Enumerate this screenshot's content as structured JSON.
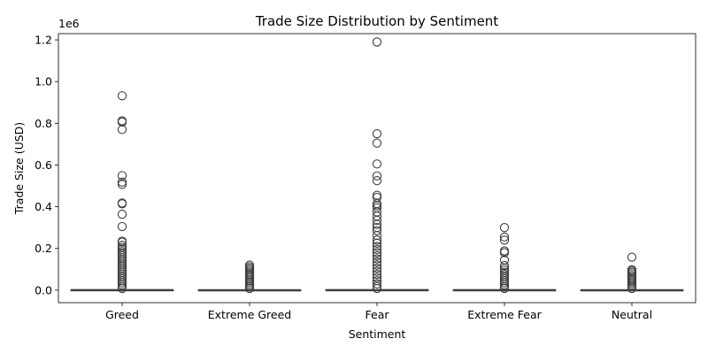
{
  "chart_data": {
    "type": "box",
    "title": "Trade Size Distribution by Sentiment",
    "xlabel": "Sentiment",
    "ylabel": "Trade Size (USD)",
    "y_offset_label": "1e6",
    "ylim": [
      -60000,
      1230000
    ],
    "yticks": [
      0,
      200000,
      400000,
      600000,
      800000,
      1000000,
      1200000
    ],
    "ytick_labels": [
      "0.0",
      "0.2",
      "0.4",
      "0.6",
      "0.8",
      "1.0",
      "1.2"
    ],
    "grid": false,
    "categories": [
      "Greed",
      "Extreme Greed",
      "Fear",
      "Extreme Fear",
      "Neutral"
    ],
    "boxes": [
      {
        "category": "Greed",
        "q1": 0,
        "median": 500,
        "q3": 2000,
        "whisker_low": 0,
        "whisker_high": 5000,
        "outliers": [
          932000,
          812000,
          806000,
          770000,
          549000,
          518000,
          507000,
          418000,
          414000,
          364000,
          305000,
          235000,
          230000,
          215000,
          205000,
          195000,
          185000,
          175000,
          165000,
          155000,
          145000,
          135000,
          125000,
          115000,
          105000,
          95000,
          85000,
          75000,
          65000,
          55000,
          45000,
          35000,
          25000,
          15000,
          8000
        ]
      },
      {
        "category": "Extreme Greed",
        "q1": 0,
        "median": 300,
        "q3": 1500,
        "whisker_low": 0,
        "whisker_high": 4000,
        "outliers": [
          120000,
          112000,
          105000,
          98000,
          90000,
          82000,
          75000,
          68000,
          60000,
          52000,
          45000,
          38000,
          30000,
          22000,
          15000,
          8000
        ]
      },
      {
        "category": "Fear",
        "q1": 0,
        "median": 500,
        "q3": 2000,
        "whisker_low": 0,
        "whisker_high": 5000,
        "outliers": [
          1190000,
          750000,
          705000,
          605000,
          548000,
          525000,
          455000,
          445000,
          415000,
          405000,
          395000,
          375000,
          355000,
          335000,
          315000,
          300000,
          285000,
          262000,
          240000,
          225000,
          210000,
          195000,
          180000,
          165000,
          150000,
          135000,
          120000,
          105000,
          90000,
          75000,
          60000,
          45000,
          30000,
          18000,
          8000
        ]
      },
      {
        "category": "Extreme Fear",
        "q1": 0,
        "median": 400,
        "q3": 1800,
        "whisker_low": 0,
        "whisker_high": 4500,
        "outliers": [
          300000,
          255000,
          240000,
          188000,
          180000,
          145000,
          118000,
          105000,
          95000,
          85000,
          75000,
          65000,
          55000,
          45000,
          35000,
          25000,
          15000,
          8000
        ]
      },
      {
        "category": "Neutral",
        "q1": 0,
        "median": 300,
        "q3": 1500,
        "whisker_low": 0,
        "whisker_high": 4000,
        "outliers": [
          158000,
          98000,
          92000,
          85000,
          78000,
          70000,
          62000,
          55000,
          48000,
          40000,
          32000,
          24000,
          16000,
          8000
        ]
      }
    ],
    "colors": {
      "box": "#3f3f3f",
      "axis": "#000000"
    }
  }
}
